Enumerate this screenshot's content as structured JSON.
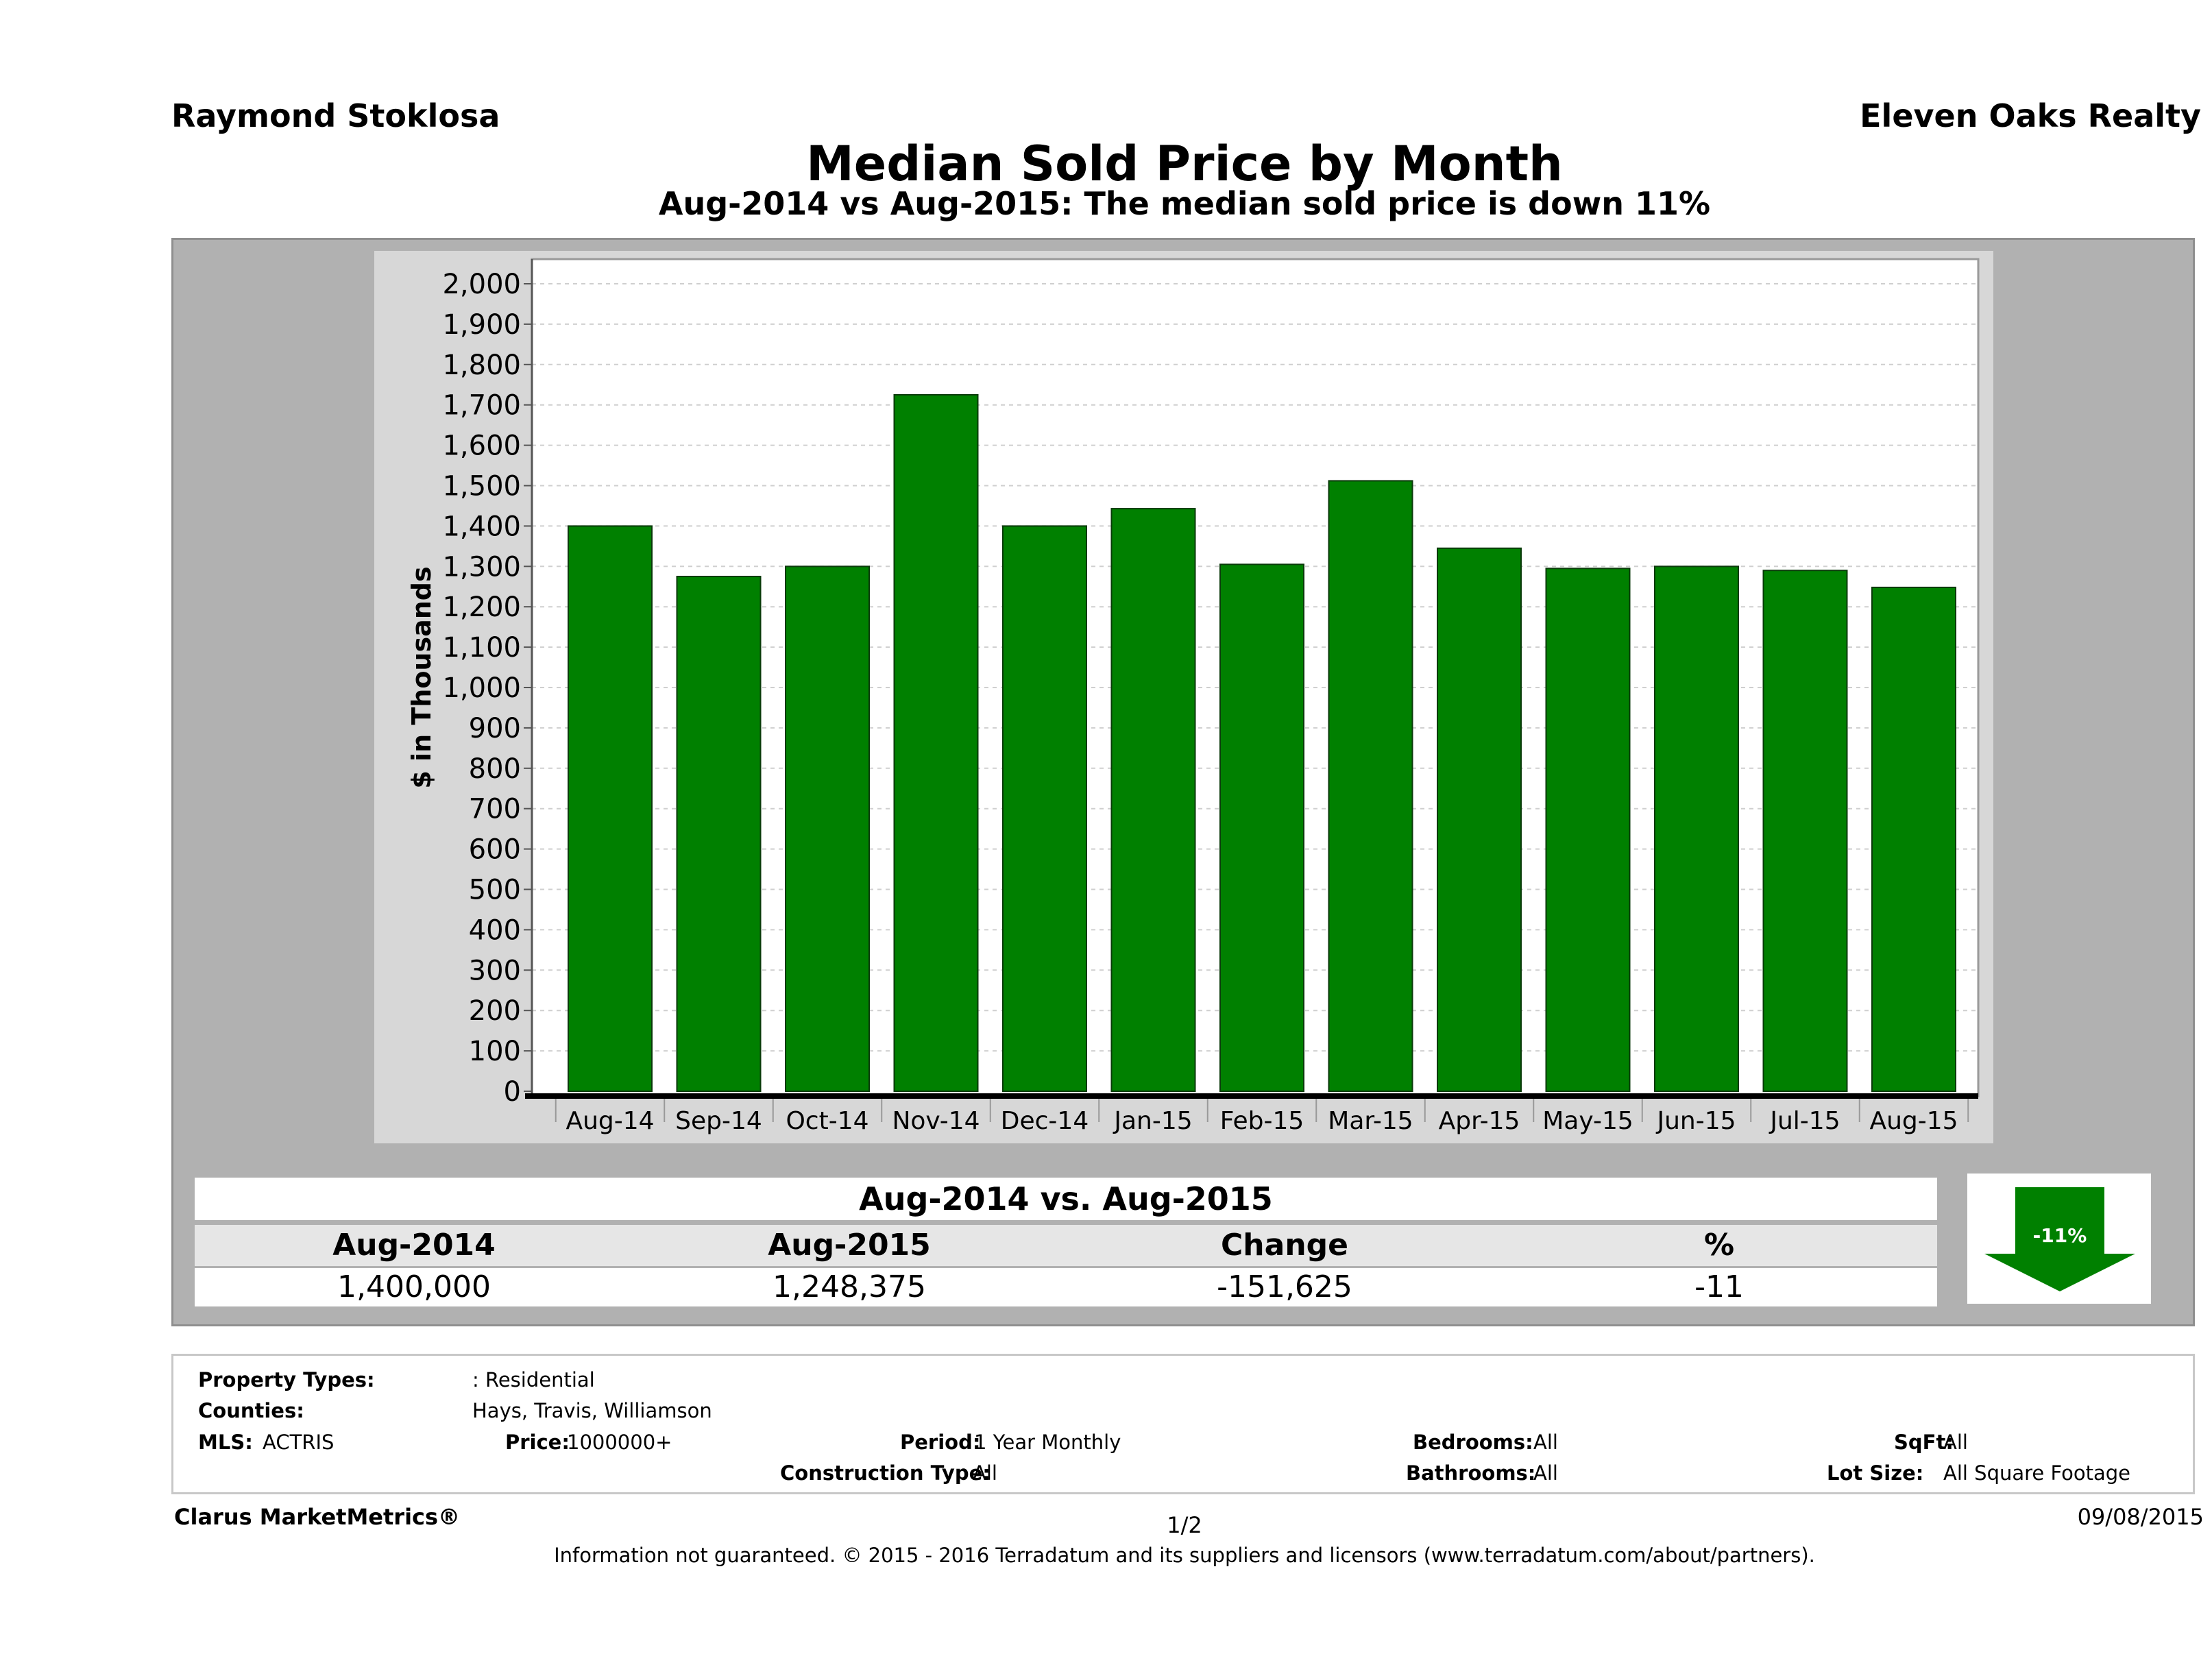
{
  "header": {
    "agent_name": "Raymond Stoklosa",
    "company": "Eleven Oaks Realty"
  },
  "chart_data": {
    "type": "bar",
    "title": "Median Sold Price by Month",
    "subtitle": "Aug-2014 vs Aug-2015: The median sold price is down 11%",
    "ylabel": "$ in Thousands",
    "xlabel": "",
    "ylim": [
      0,
      2000
    ],
    "ytick_step": 100,
    "grid": true,
    "bar_color": "#008000",
    "categories": [
      "Aug-14",
      "Sep-14",
      "Oct-14",
      "Nov-14",
      "Dec-14",
      "Jan-15",
      "Feb-15",
      "Mar-15",
      "Apr-15",
      "May-15",
      "Jun-15",
      "Jul-15",
      "Aug-15"
    ],
    "values": [
      1400,
      1275,
      1300,
      1725,
      1400,
      1443,
      1305,
      1512,
      1345,
      1295,
      1300,
      1290,
      1248
    ]
  },
  "summary": {
    "title": "Aug-2014 vs. Aug-2015",
    "headers": [
      "Aug-2014",
      "Aug-2015",
      "Change",
      "%"
    ],
    "values": [
      "1,400,000",
      "1,248,375",
      "-151,625",
      "-11"
    ],
    "badge": "-11%",
    "badge_color": "#008000"
  },
  "info": {
    "property_types_label": "Property Types:",
    "property_types_value": ": Residential",
    "counties_label": "Counties:",
    "counties_value": "Hays, Travis, Williamson",
    "mls_label": "MLS:",
    "mls_value": "ACTRIS",
    "price_label": "Price:",
    "price_value": "1000000+",
    "period_label": "Period:",
    "period_value": "1 Year Monthly",
    "construction_label": "Construction Type:",
    "construction_value": "All",
    "bedrooms_label": "Bedrooms:",
    "bedrooms_value": "All",
    "bathrooms_label": "Bathrooms:",
    "bathrooms_value": "All",
    "sqft_label": "SqFt:",
    "sqft_value": "All",
    "lot_label": "Lot Size:",
    "lot_value": "All Square Footage"
  },
  "footer": {
    "brand": "Clarus MarketMetrics®",
    "page": "1/2",
    "date": "09/08/2015",
    "disclaimer": "Information not guaranteed. © 2015 - 2016 Terradatum and its suppliers and licensors (www.terradatum.com/about/partners)."
  }
}
